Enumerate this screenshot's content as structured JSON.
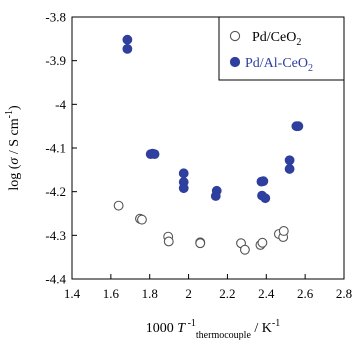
{
  "chart_data": {
    "type": "scatter",
    "xlim": [
      1.4,
      2.8
    ],
    "ylim": [
      -4.4,
      -3.8
    ],
    "x_ticks": [
      "1.4",
      "1.6",
      "1.8",
      "2",
      "2.2",
      "2.4",
      "2.6",
      "2.8"
    ],
    "y_ticks": [
      "-3.8",
      "-3.9",
      "-4",
      "-4.1",
      "-4.2",
      "-4.3",
      "-4.4"
    ],
    "x_tick_values": [
      1.4,
      1.6,
      1.8,
      2.0,
      2.2,
      2.4,
      2.6,
      2.8
    ],
    "y_tick_values": [
      -3.8,
      -3.9,
      -4.0,
      -4.1,
      -4.2,
      -4.3,
      -4.4
    ],
    "xlabel": {
      "prefix": "1000 ",
      "var": "T",
      "sup": " -1",
      "sub": "thermocouple",
      "suffix": " / K",
      "suffix_sup": "-1"
    },
    "ylabel": {
      "prefix": "log (",
      "var": "σ",
      "mid": " / S cm",
      "sup": "-1",
      "suffix": ")"
    },
    "grid": false,
    "legend_position": "top-right",
    "series": [
      {
        "name": "Pd/CeO2",
        "name_parts": [
          "Pd/CeO",
          "2"
        ],
        "marker": "open-circle",
        "color": "#555555",
        "points": [
          [
            1.64,
            -4.232
          ],
          [
            1.75,
            -4.262
          ],
          [
            1.76,
            -4.264
          ],
          [
            1.895,
            -4.303
          ],
          [
            1.898,
            -4.314
          ],
          [
            2.06,
            -4.316
          ],
          [
            2.06,
            -4.318
          ],
          [
            2.27,
            -4.318
          ],
          [
            2.29,
            -4.333
          ],
          [
            2.37,
            -4.322
          ],
          [
            2.38,
            -4.317
          ],
          [
            2.465,
            -4.297
          ],
          [
            2.487,
            -4.304
          ],
          [
            2.49,
            -4.29
          ]
        ]
      },
      {
        "name": "Pd/Al-CeO2",
        "name_parts": [
          "Pd/Al-CeO",
          "2"
        ],
        "marker": "filled-circle",
        "color": "#2e3f9e",
        "points": [
          [
            1.685,
            -3.852
          ],
          [
            1.685,
            -3.873
          ],
          [
            1.805,
            -4.114
          ],
          [
            1.815,
            -4.113
          ],
          [
            1.825,
            -4.114
          ],
          [
            1.975,
            -4.158
          ],
          [
            1.975,
            -4.178
          ],
          [
            1.975,
            -4.192
          ],
          [
            2.145,
            -4.198
          ],
          [
            2.14,
            -4.21
          ],
          [
            2.375,
            -4.177
          ],
          [
            2.385,
            -4.176
          ],
          [
            2.378,
            -4.209
          ],
          [
            2.395,
            -4.215
          ],
          [
            2.52,
            -4.128
          ],
          [
            2.52,
            -4.148
          ],
          [
            2.555,
            -4.05
          ],
          [
            2.565,
            -4.05
          ]
        ]
      }
    ]
  }
}
